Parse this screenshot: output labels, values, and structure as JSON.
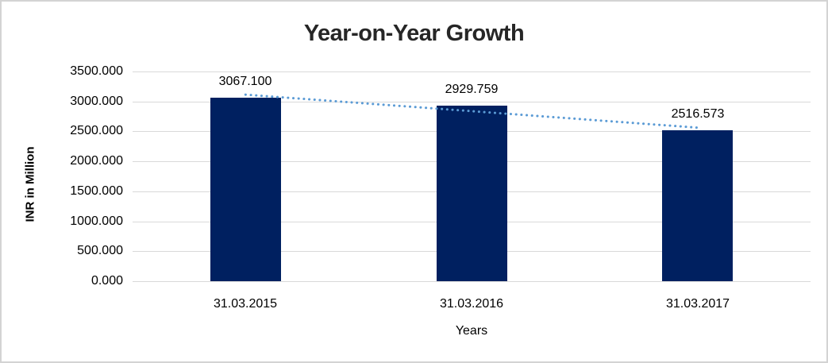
{
  "chart_data": {
    "type": "bar",
    "title": "Year-on-Year Growth",
    "categories": [
      "31.03.2015",
      "31.03.2016",
      "31.03.2017"
    ],
    "values": [
      3067.1,
      2929.759,
      2516.573
    ],
    "data_labels": [
      "3067.100",
      "2929.759",
      "2516.573"
    ],
    "xlabel": "Years",
    "ylabel": "INR in Million",
    "ylim": [
      0,
      3500
    ],
    "ytick_step": 500,
    "yticks": [
      "3500.000",
      "3000.000",
      "2500.000",
      "2000.000",
      "1500.000",
      "1000.000",
      "500.000",
      "0.000"
    ],
    "grid": true,
    "legend": "none",
    "trendline": {
      "type": "linear",
      "style": "dotted",
      "color": "#5B9BD5"
    },
    "colors": {
      "bar": "#002060",
      "gridline": "#D9D9D9",
      "axis_text": "#000000",
      "title": "#262626",
      "frame_border": "#D3D3D3",
      "background": "#FFFFFF"
    }
  }
}
